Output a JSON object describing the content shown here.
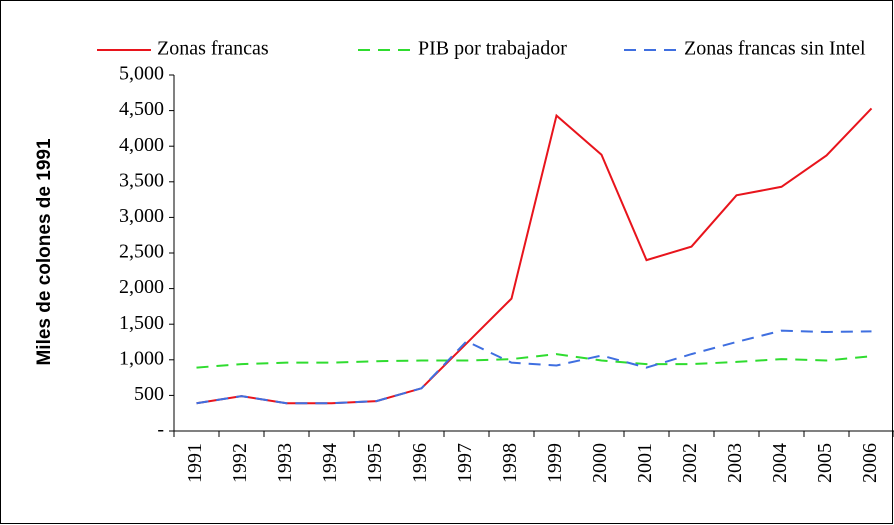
{
  "chart_data": {
    "type": "line",
    "y_label": "Miles de colones de 1991",
    "categories": [
      "1991",
      "1992",
      "1993",
      "1994",
      "1995",
      "1996",
      "1997",
      "1998",
      "1999",
      "2000",
      "2001",
      "2002",
      "2003",
      "2004",
      "2005",
      "2006"
    ],
    "series": [
      {
        "name": "Zonas francas",
        "color": "#e8141c",
        "line_style": "solid",
        "values": [
          390,
          490,
          390,
          390,
          420,
          600,
          1230,
          1860,
          4430,
          3880,
          2400,
          2590,
          3310,
          3430,
          3870,
          4530
        ]
      },
      {
        "name": "PIB por trabajador",
        "color": "#2fdc2f",
        "line_style": "dashed",
        "values": [
          890,
          940,
          960,
          960,
          980,
          990,
          990,
          1010,
          1080,
          990,
          940,
          940,
          970,
          1010,
          990,
          1050
        ]
      },
      {
        "name": "Zonas francas sin Intel",
        "color": "#3f6fe0",
        "line_style": "dashed",
        "values": [
          390,
          490,
          390,
          390,
          420,
          600,
          1260,
          960,
          920,
          1060,
          890,
          1080,
          1250,
          1410,
          1390,
          1400
        ]
      }
    ],
    "ylim": [
      0,
      5000
    ],
    "yticks": [
      {
        "value": 0,
        "label": "-"
      },
      500,
      {
        "value": 1000,
        "label": "1,000"
      },
      {
        "value": 1500,
        "label": "1,500"
      },
      {
        "value": 2000,
        "label": "2,000"
      },
      {
        "value": 2500,
        "label": "2,500"
      },
      {
        "value": 3000,
        "label": "3,000"
      },
      {
        "value": 3500,
        "label": "3,500"
      },
      {
        "value": 4000,
        "label": "4,000"
      },
      {
        "value": 4500,
        "label": "4,500"
      },
      {
        "value": 5000,
        "label": "5,000"
      }
    ],
    "legend": "top",
    "grid": false
  }
}
